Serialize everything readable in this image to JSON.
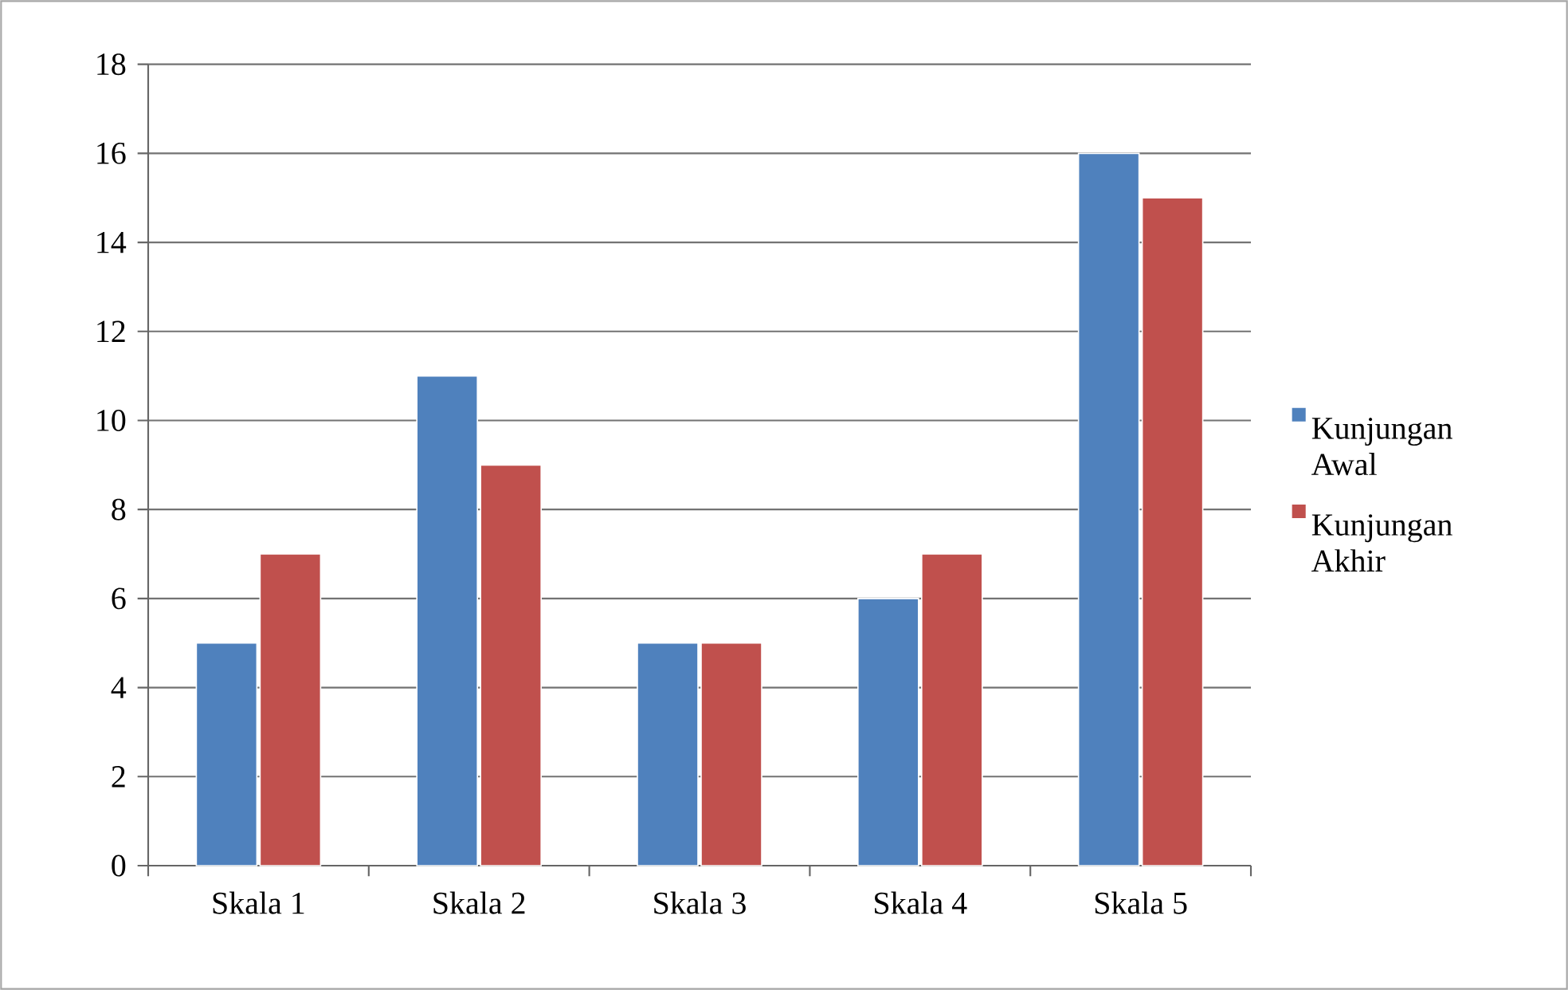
{
  "chart_data": {
    "type": "bar",
    "categories": [
      "Skala 1",
      "Skala 2",
      "Skala 3",
      "Skala 4",
      "Skala 5"
    ],
    "series": [
      {
        "name": "Kunjungan Awal",
        "color": "#4f81bd",
        "values": [
          5,
          11,
          5,
          6,
          16
        ]
      },
      {
        "name": "Kunjungan Akhir",
        "color": "#c0504d",
        "values": [
          7,
          9,
          5,
          7,
          15
        ]
      }
    ],
    "ylim": [
      0,
      18
    ],
    "yticks": [
      0,
      2,
      4,
      6,
      8,
      10,
      12,
      14,
      16,
      18
    ],
    "grid": "y",
    "legend": "right"
  }
}
